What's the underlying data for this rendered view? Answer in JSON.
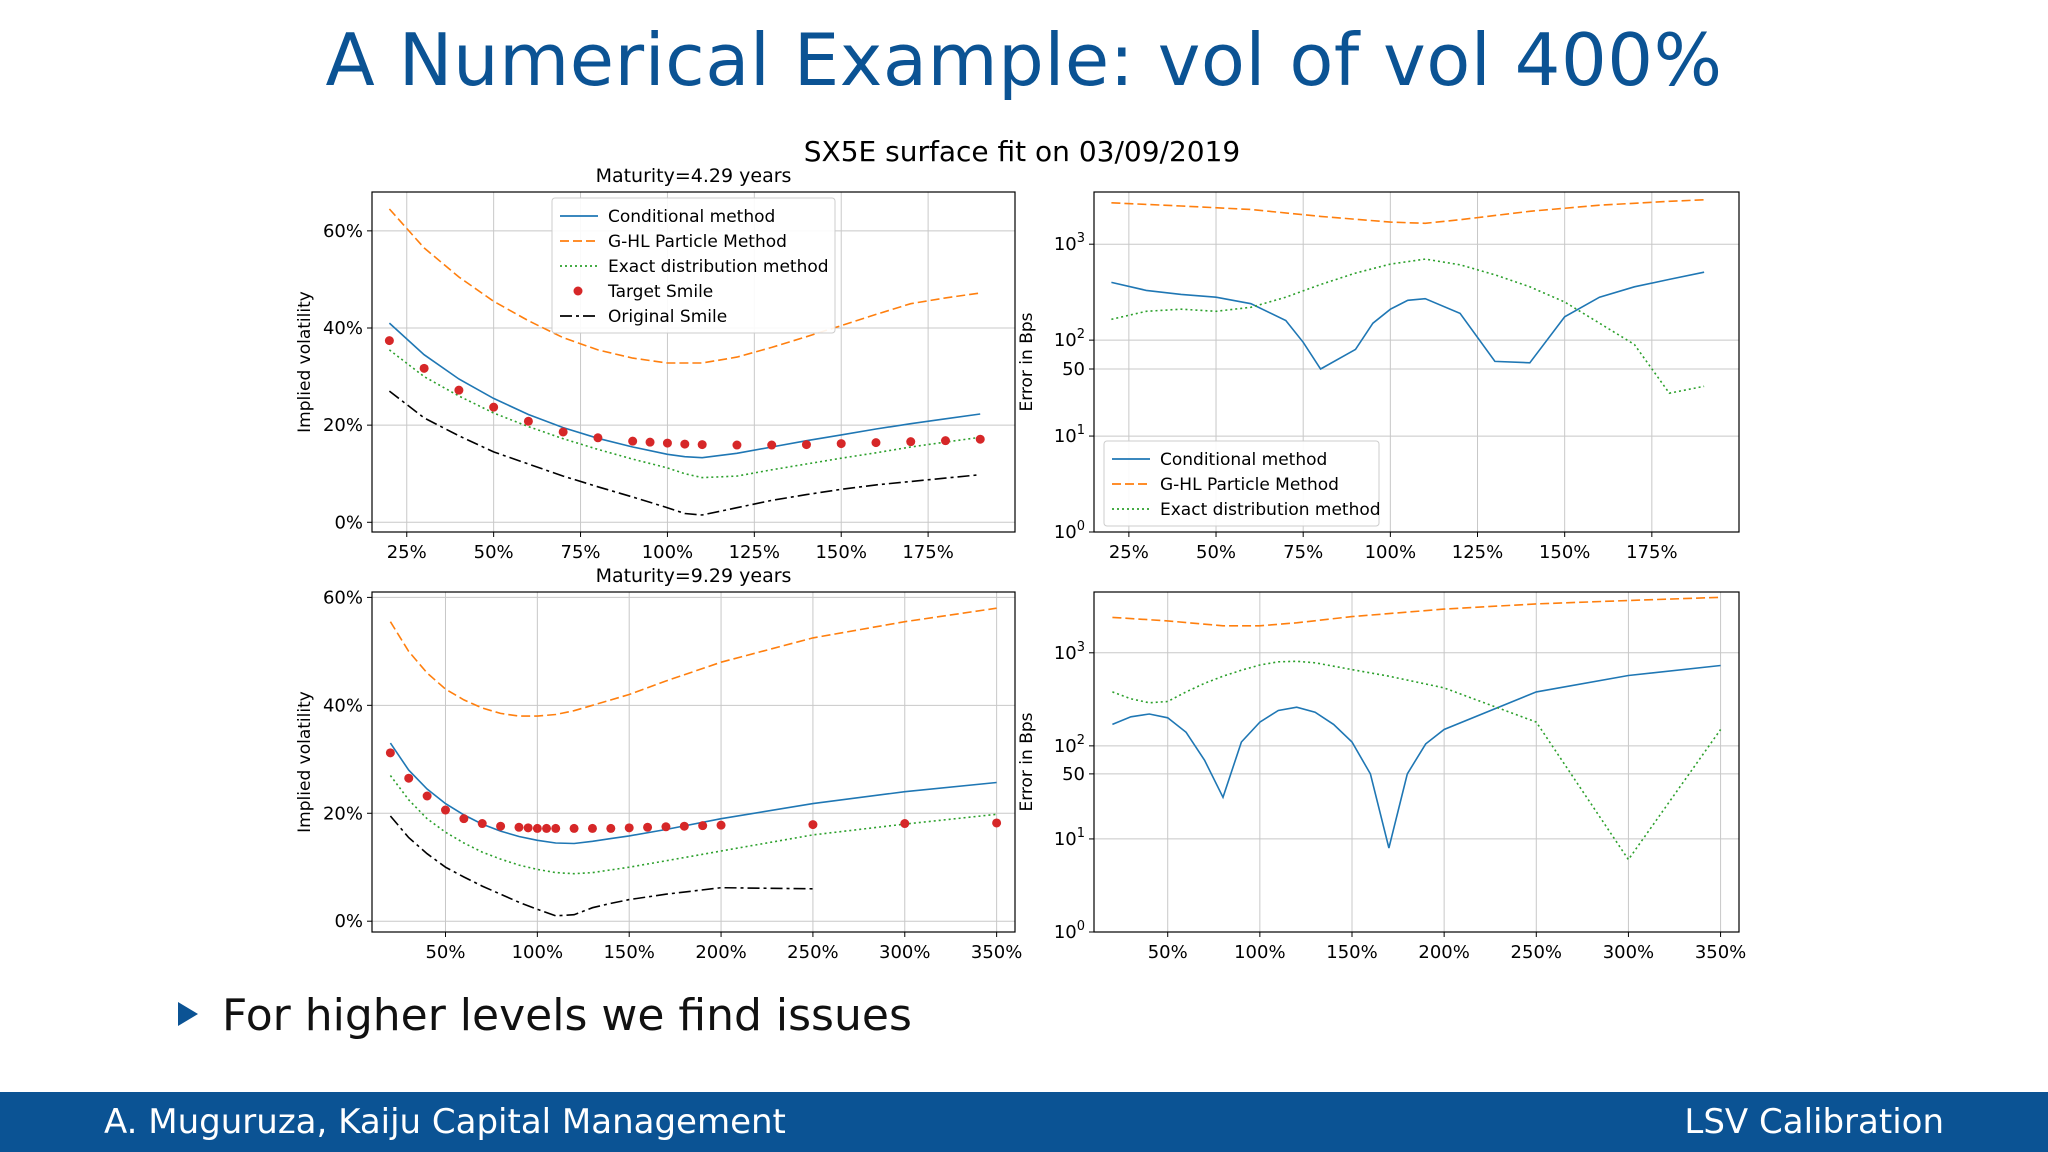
{
  "slide": {
    "title": "A Numerical Example: vol of vol 400%",
    "bullet": "For higher levels we find issues",
    "footer_left": "A. Muguruza, Kaiju Capital Management",
    "footer_right": "LSV Calibration"
  },
  "colors": {
    "accent": "#0b5394",
    "conditional": "#1f77b4",
    "ghl": "#ff7f0e",
    "exact": "#2ca02c",
    "target": "#d62728",
    "original": "#000000"
  },
  "chart_data": {
    "suptitle": "SX5E surface fit on 03/09/2019",
    "legend_vol": [
      "Conditional method",
      "G-HL Particle Method",
      "Exact distribution method",
      "Target Smile",
      "Original Smile"
    ],
    "legend_err": [
      "Conditional method",
      "G-HL Particle Method",
      "Exact distribution method"
    ],
    "charts": [
      {
        "type": "line",
        "title": "Maturity=4.29 years",
        "xlabel": "",
        "ylabel": "Implied volatility",
        "xlim": [
          0.15,
          2.0
        ],
        "ylim": [
          -0.02,
          0.68
        ],
        "xticks": [
          0.25,
          0.5,
          0.75,
          1.0,
          1.25,
          1.5,
          1.75
        ],
        "xticklabels": [
          "25%",
          "50%",
          "75%",
          "100%",
          "125%",
          "150%",
          "175%"
        ],
        "yticks": [
          0,
          0.2,
          0.4,
          0.6
        ],
        "yticklabels": [
          "0%",
          "20%",
          "40%",
          "60%"
        ],
        "grid": true,
        "legend": "top-center",
        "series": [
          {
            "name": "Conditional method",
            "style": "solid",
            "x": [
              0.2,
              0.3,
              0.4,
              0.5,
              0.6,
              0.7,
              0.8,
              0.9,
              1.0,
              1.05,
              1.1,
              1.2,
              1.3,
              1.4,
              1.5,
              1.6,
              1.7,
              1.8,
              1.9
            ],
            "y": [
              0.41,
              0.345,
              0.295,
              0.255,
              0.222,
              0.195,
              0.173,
              0.155,
              0.14,
              0.135,
              0.133,
              0.142,
              0.155,
              0.168,
              0.18,
              0.192,
              0.203,
              0.213,
              0.223
            ]
          },
          {
            "name": "G-HL Particle Method",
            "style": "dashed",
            "x": [
              0.2,
              0.3,
              0.4,
              0.5,
              0.6,
              0.7,
              0.8,
              0.9,
              1.0,
              1.1,
              1.2,
              1.3,
              1.4,
              1.5,
              1.6,
              1.7,
              1.8,
              1.9
            ],
            "y": [
              0.645,
              0.565,
              0.505,
              0.455,
              0.415,
              0.38,
              0.355,
              0.338,
              0.328,
              0.328,
              0.34,
              0.36,
              0.382,
              0.405,
              0.428,
              0.45,
              0.462,
              0.472
            ]
          },
          {
            "name": "Exact distribution method",
            "style": "dotted",
            "x": [
              0.2,
              0.3,
              0.4,
              0.5,
              0.6,
              0.7,
              0.8,
              0.9,
              1.0,
              1.05,
              1.1,
              1.2,
              1.3,
              1.4,
              1.5,
              1.6,
              1.7,
              1.8,
              1.9
            ],
            "y": [
              0.355,
              0.3,
              0.26,
              0.225,
              0.197,
              0.172,
              0.15,
              0.13,
              0.112,
              0.1,
              0.092,
              0.095,
              0.108,
              0.12,
              0.132,
              0.143,
              0.155,
              0.165,
              0.175
            ]
          },
          {
            "name": "Target Smile",
            "style": "points",
            "x": [
              0.2,
              0.3,
              0.4,
              0.5,
              0.6,
              0.7,
              0.8,
              0.9,
              0.95,
              1.0,
              1.05,
              1.1,
              1.2,
              1.3,
              1.4,
              1.5,
              1.6,
              1.7,
              1.8,
              1.9
            ],
            "y": [
              0.374,
              0.317,
              0.272,
              0.237,
              0.208,
              0.186,
              0.174,
              0.167,
              0.165,
              0.163,
              0.161,
              0.16,
              0.159,
              0.159,
              0.16,
              0.162,
              0.164,
              0.166,
              0.168,
              0.171
            ]
          },
          {
            "name": "Original Smile",
            "style": "dashdot",
            "x": [
              0.2,
              0.3,
              0.4,
              0.5,
              0.6,
              0.7,
              0.8,
              0.9,
              1.0,
              1.05,
              1.1,
              1.2,
              1.3,
              1.4,
              1.5,
              1.6,
              1.7,
              1.8,
              1.9
            ],
            "y": [
              0.27,
              0.215,
              0.178,
              0.145,
              0.12,
              0.095,
              0.073,
              0.052,
              0.03,
              0.018,
              0.015,
              0.03,
              0.045,
              0.057,
              0.068,
              0.077,
              0.084,
              0.091,
              0.098
            ]
          }
        ]
      },
      {
        "type": "line",
        "title": "",
        "xlabel": "",
        "ylabel": "Error in Bps",
        "scale": "log",
        "xlim": [
          0.15,
          2.0
        ],
        "ylim": [
          1,
          3500
        ],
        "xticks": [
          0.25,
          0.5,
          0.75,
          1.0,
          1.25,
          1.5,
          1.75
        ],
        "xticklabels": [
          "25%",
          "50%",
          "75%",
          "100%",
          "125%",
          "150%",
          "175%"
        ],
        "yticks": [
          1,
          10,
          50,
          100,
          1000
        ],
        "yticklabels": [
          "10^0",
          "10^1",
          "50",
          "10^2",
          "10^3"
        ],
        "grid": true,
        "legend": "bottom-left",
        "series": [
          {
            "name": "Conditional method",
            "style": "solid",
            "x": [
              0.2,
              0.3,
              0.4,
              0.5,
              0.6,
              0.7,
              0.75,
              0.8,
              0.9,
              0.95,
              1.0,
              1.05,
              1.1,
              1.2,
              1.3,
              1.4,
              1.5,
              1.6,
              1.7,
              1.8,
              1.9
            ],
            "y": [
              400,
              330,
              300,
              280,
              240,
              160,
              95,
              50,
              80,
              150,
              210,
              260,
              270,
              190,
              60,
              58,
              175,
              280,
              360,
              430,
              510
            ]
          },
          {
            "name": "G-HL Particle Method",
            "style": "dashed",
            "x": [
              0.2,
              0.4,
              0.6,
              0.8,
              1.0,
              1.1,
              1.2,
              1.4,
              1.6,
              1.8,
              1.9
            ],
            "y": [
              2700,
              2500,
              2300,
              1950,
              1700,
              1650,
              1800,
              2200,
              2550,
              2800,
              2900
            ]
          },
          {
            "name": "Exact distribution method",
            "style": "dotted",
            "x": [
              0.2,
              0.3,
              0.4,
              0.5,
              0.6,
              0.7,
              0.8,
              0.9,
              1.0,
              1.1,
              1.2,
              1.3,
              1.4,
              1.5,
              1.6,
              1.7,
              1.8,
              1.9
            ],
            "y": [
              165,
              200,
              210,
              200,
              220,
              280,
              380,
              500,
              620,
              700,
              610,
              480,
              360,
              250,
              150,
              90,
              28,
              33
            ]
          }
        ]
      },
      {
        "type": "line",
        "title": "Maturity=9.29 years",
        "xlabel": "",
        "ylabel": "Implied volatility",
        "xlim": [
          0.1,
          3.6
        ],
        "ylim": [
          -0.02,
          0.61
        ],
        "xticks": [
          0.5,
          1.0,
          1.5,
          2.0,
          2.5,
          3.0,
          3.5
        ],
        "xticklabels": [
          "50%",
          "100%",
          "150%",
          "200%",
          "250%",
          "300%",
          "350%"
        ],
        "yticks": [
          0,
          0.2,
          0.4,
          0.6
        ],
        "yticklabels": [
          "0%",
          "20%",
          "40%",
          "60%"
        ],
        "grid": true,
        "legend": "none",
        "series": [
          {
            "name": "Conditional method",
            "style": "solid",
            "x": [
              0.2,
              0.3,
              0.4,
              0.5,
              0.6,
              0.7,
              0.8,
              0.9,
              1.0,
              1.1,
              1.2,
              1.3,
              1.4,
              1.5,
              1.7,
              2.0,
              2.5,
              3.0,
              3.5
            ],
            "y": [
              0.33,
              0.28,
              0.245,
              0.218,
              0.197,
              0.18,
              0.167,
              0.157,
              0.15,
              0.145,
              0.144,
              0.148,
              0.153,
              0.158,
              0.17,
              0.19,
              0.218,
              0.24,
              0.257
            ]
          },
          {
            "name": "G-HL Particle Method",
            "style": "dashed",
            "x": [
              0.2,
              0.3,
              0.4,
              0.5,
              0.6,
              0.7,
              0.8,
              0.9,
              1.0,
              1.1,
              1.2,
              1.3,
              1.5,
              1.7,
              2.0,
              2.5,
              3.0,
              3.5
            ],
            "y": [
              0.555,
              0.5,
              0.46,
              0.43,
              0.41,
              0.395,
              0.385,
              0.38,
              0.38,
              0.383,
              0.39,
              0.4,
              0.42,
              0.445,
              0.48,
              0.525,
              0.555,
              0.58
            ]
          },
          {
            "name": "Exact distribution method",
            "style": "dotted",
            "x": [
              0.2,
              0.3,
              0.4,
              0.5,
              0.6,
              0.7,
              0.8,
              0.9,
              1.0,
              1.1,
              1.2,
              1.3,
              1.5,
              1.7,
              2.0,
              2.5,
              3.0,
              3.5
            ],
            "y": [
              0.27,
              0.225,
              0.19,
              0.165,
              0.145,
              0.128,
              0.115,
              0.104,
              0.096,
              0.09,
              0.088,
              0.09,
              0.1,
              0.112,
              0.13,
              0.16,
              0.18,
              0.198
            ]
          },
          {
            "name": "Target Smile",
            "style": "points",
            "x": [
              0.2,
              0.3,
              0.4,
              0.5,
              0.6,
              0.7,
              0.8,
              0.9,
              0.95,
              1.0,
              1.05,
              1.1,
              1.2,
              1.3,
              1.4,
              1.5,
              1.6,
              1.7,
              1.8,
              1.9,
              2.0,
              2.5,
              3.0,
              3.5
            ],
            "y": [
              0.312,
              0.265,
              0.232,
              0.206,
              0.19,
              0.181,
              0.176,
              0.174,
              0.173,
              0.172,
              0.172,
              0.172,
              0.172,
              0.172,
              0.172,
              0.173,
              0.174,
              0.175,
              0.176,
              0.177,
              0.178,
              0.179,
              0.181,
              0.182
            ]
          },
          {
            "name": "Original Smile",
            "style": "dashdot",
            "x": [
              0.2,
              0.3,
              0.4,
              0.5,
              0.6,
              0.7,
              0.8,
              0.9,
              1.0,
              1.1,
              1.2,
              1.3,
              1.4,
              1.5,
              1.7,
              2.0,
              2.5
            ],
            "y": [
              0.195,
              0.155,
              0.125,
              0.1,
              0.082,
              0.065,
              0.05,
              0.035,
              0.022,
              0.01,
              0.012,
              0.025,
              0.033,
              0.04,
              0.05,
              0.062,
              0.06
            ]
          }
        ]
      },
      {
        "type": "line",
        "title": "",
        "xlabel": "",
        "ylabel": "Error in Bps",
        "scale": "log",
        "xlim": [
          0.1,
          3.6
        ],
        "ylim": [
          1,
          4500
        ],
        "xticks": [
          0.5,
          1.0,
          1.5,
          2.0,
          2.5,
          3.0,
          3.5
        ],
        "xticklabels": [
          "50%",
          "100%",
          "150%",
          "200%",
          "250%",
          "300%",
          "350%"
        ],
        "yticks": [
          1,
          10,
          50,
          100,
          1000
        ],
        "yticklabels": [
          "10^0",
          "10^1",
          "50",
          "10^2",
          "10^3"
        ],
        "grid": true,
        "legend": "none",
        "series": [
          {
            "name": "Conditional method",
            "style": "solid",
            "x": [
              0.2,
              0.3,
              0.4,
              0.5,
              0.6,
              0.7,
              0.8,
              0.9,
              1.0,
              1.1,
              1.2,
              1.3,
              1.4,
              1.5,
              1.6,
              1.7,
              1.8,
              1.9,
              2.0,
              2.5,
              3.0,
              3.5
            ],
            "y": [
              170,
              205,
              220,
              200,
              140,
              70,
              28,
              110,
              180,
              240,
              260,
              230,
              170,
              110,
              50,
              8,
              50,
              105,
              150,
              380,
              570,
              730
            ]
          },
          {
            "name": "G-HL Particle Method",
            "style": "dashed",
            "x": [
              0.2,
              0.5,
              0.8,
              1.0,
              1.2,
              1.5,
              2.0,
              2.5,
              3.0,
              3.5
            ],
            "y": [
              2400,
              2200,
              1950,
              1950,
              2100,
              2450,
              2950,
              3350,
              3650,
              3950
            ]
          },
          {
            "name": "Exact distribution method",
            "style": "dotted",
            "x": [
              0.2,
              0.3,
              0.4,
              0.5,
              0.6,
              0.7,
              0.8,
              0.9,
              1.0,
              1.1,
              1.2,
              1.3,
              1.5,
              1.7,
              2.0,
              2.5,
              3.0,
              3.5
            ],
            "y": [
              380,
              320,
              290,
              300,
              380,
              470,
              560,
              650,
              740,
              800,
              810,
              780,
              660,
              560,
              420,
              180,
              6,
              150
            ]
          }
        ]
      }
    ]
  }
}
